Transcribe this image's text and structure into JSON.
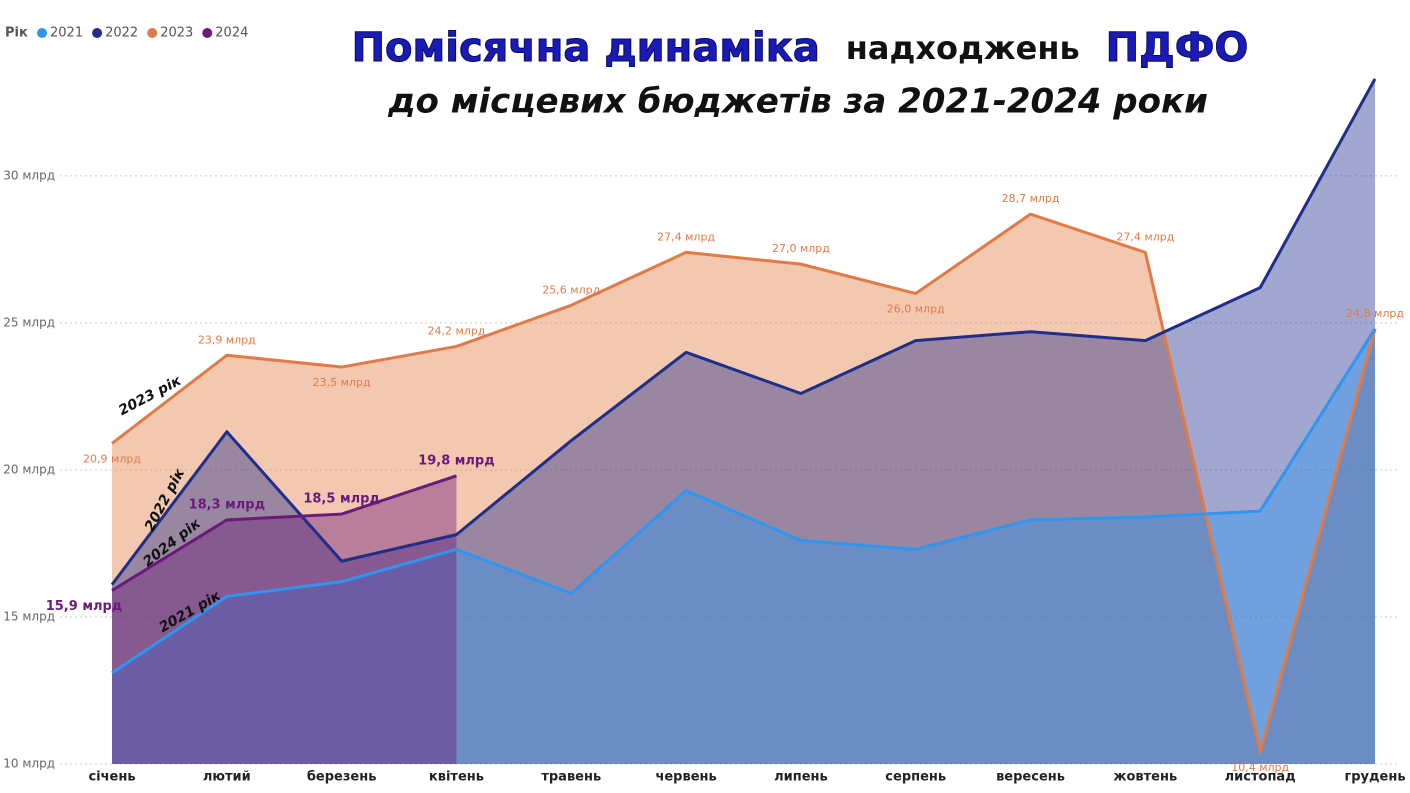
{
  "chart_data": {
    "type": "area",
    "title": [
      "Помісячна динаміка",
      "надходжень",
      "ПДФО"
    ],
    "subtitle": "до місцевих бюджетів за 2021-2024 роки",
    "legend_title": "Рік",
    "categories": [
      "січень",
      "лютий",
      "березень",
      "квітень",
      "травень",
      "червень",
      "липень",
      "серпень",
      "вересень",
      "жовтень",
      "листопад",
      "грудень"
    ],
    "series": [
      {
        "name": "2023",
        "color": "#e07b45",
        "values": [
          20.9,
          23.9,
          23.5,
          24.2,
          25.6,
          27.4,
          27.0,
          26.0,
          28.7,
          27.4,
          10.4,
          24.8
        ],
        "value_labels": [
          "20,9 млрд",
          "23,9 млрд",
          "23,5 млрд",
          "24,2 млрд",
          "25,6 млрд",
          "27,4 млрд",
          "27,0 млрд",
          "26,0 млрд",
          "28,7 млрд",
          "27,4 млрд",
          "10,4 млрд",
          "24,8 млрд"
        ]
      },
      {
        "name": "2022",
        "color": "#1f2e8c",
        "values": [
          16.1,
          21.3,
          16.9,
          17.8,
          21.0,
          24.0,
          22.6,
          24.4,
          24.7,
          24.4,
          26.2,
          33.3
        ]
      },
      {
        "name": "2021",
        "color": "#2e95f0",
        "values": [
          13.1,
          15.7,
          16.2,
          17.3,
          15.8,
          19.3,
          17.6,
          17.3,
          18.3,
          18.4,
          18.6,
          24.8
        ]
      },
      {
        "name": "2024",
        "color": "#6b1a7a",
        "values": [
          15.9,
          18.3,
          18.5,
          19.8,
          null,
          null,
          null,
          null,
          null,
          null,
          null,
          null
        ],
        "value_labels": [
          "15,9 млрд",
          "18,3 млрд",
          "18,5 млрд",
          "19,8 млрд",
          null,
          null,
          null,
          null,
          null,
          null,
          null,
          null
        ]
      }
    ],
    "legend_order": [
      2,
      1,
      0,
      3
    ],
    "annotations": [
      "2023 рік",
      "2022 рік",
      "2024 рік",
      "2021 рік"
    ],
    "ylim": [
      10,
      33.5
    ],
    "yticks": [
      {
        "value": 10,
        "label": "10 млрд"
      },
      {
        "value": 15,
        "label": "15 млрд"
      },
      {
        "value": 20,
        "label": "20 млрд"
      },
      {
        "value": 25,
        "label": "25 млрд"
      },
      {
        "value": 30,
        "label": "30 млрд"
      }
    ],
    "grid": true
  }
}
